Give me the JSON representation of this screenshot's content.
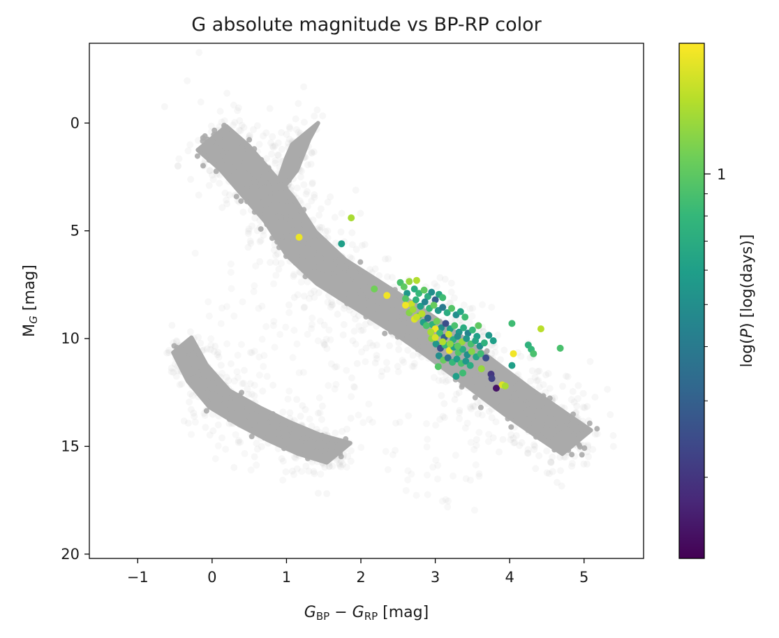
{
  "chart_data": {
    "type": "scatter",
    "title": "G absolute magnitude vs BP-RP color",
    "xlabel": {
      "base1": "G",
      "sub1": "BP",
      "minus": " − ",
      "base2": "G",
      "sub2": "RP",
      "unit": " [mag]"
    },
    "ylabel": {
      "base": "M",
      "sub": "G",
      "unit": " [mag]"
    },
    "xlim": [
      -1.65,
      5.8
    ],
    "ylim": [
      20.2,
      -3.7
    ],
    "y_inverted": true,
    "x_ticks": [
      -1,
      0,
      1,
      2,
      3,
      4,
      5
    ],
    "x_tick_labels": [
      "−1",
      "0",
      "1",
      "2",
      "3",
      "4",
      "5"
    ],
    "y_ticks": [
      0,
      5,
      10,
      15,
      20
    ],
    "y_tick_labels": [
      "0",
      "5",
      "10",
      "15",
      "20"
    ],
    "grid": false,
    "colorbar": {
      "label": "log(P) [log(days)]",
      "label_parts": {
        "pre": "log(",
        "italic": "P",
        "post": ") [log(days)]"
      },
      "scale": "log",
      "range": [
        0.13,
        2.0
      ],
      "ticks": [
        1
      ],
      "tick_labels": [
        "1"
      ],
      "minor_ticks": [
        0.2,
        0.3,
        0.4,
        0.5,
        0.6,
        0.7,
        0.8,
        0.9
      ],
      "colormap": "viridis",
      "colormap_stops": [
        "#440154",
        "#482878",
        "#3e4989",
        "#31688e",
        "#26828e",
        "#1f9e89",
        "#35b779",
        "#6ece58",
        "#b5de2b",
        "#fde725"
      ]
    },
    "background_population": {
      "description_color": "#aaaaaa",
      "core_color": "#aaaaaa",
      "halo_color": "#bdbdbd",
      "main_sequence_ridge": [
        [
          0.0,
          0.7
        ],
        [
          0.3,
          1.6
        ],
        [
          0.6,
          2.8
        ],
        [
          0.9,
          4.0
        ],
        [
          1.2,
          5.6
        ],
        [
          1.6,
          6.9
        ],
        [
          2.1,
          8.0
        ],
        [
          2.6,
          9.1
        ],
        [
          3.1,
          10.3
        ],
        [
          3.6,
          11.6
        ],
        [
          4.1,
          12.9
        ],
        [
          4.6,
          14.1
        ],
        [
          4.9,
          14.8
        ]
      ],
      "giant_branch_ridge": [
        [
          0.8,
          3.5
        ],
        [
          1.0,
          2.6
        ],
        [
          1.15,
          1.2
        ],
        [
          1.25,
          0.5
        ]
      ],
      "white_dwarf_ridge": [
        [
          -0.4,
          10.3
        ],
        [
          -0.2,
          11.6
        ],
        [
          0.1,
          12.8
        ],
        [
          0.5,
          13.6
        ],
        [
          0.9,
          14.3
        ],
        [
          1.3,
          14.9
        ],
        [
          1.7,
          15.3
        ]
      ]
    },
    "series": [
      {
        "points": [
          [
            1.17,
            5.3,
            1.85
          ],
          [
            1.87,
            4.4,
            1.4
          ],
          [
            1.74,
            5.6,
            0.6
          ],
          [
            2.18,
            7.7,
            1.1
          ],
          [
            2.35,
            8.0,
            1.9
          ],
          [
            2.53,
            7.4,
            0.9
          ],
          [
            2.58,
            7.6,
            1.0
          ],
          [
            2.62,
            7.9,
            0.55
          ],
          [
            2.65,
            7.35,
            1.3
          ],
          [
            2.72,
            7.7,
            0.7
          ],
          [
            2.75,
            7.3,
            1.45
          ],
          [
            2.78,
            7.9,
            0.8
          ],
          [
            2.85,
            7.75,
            1.0
          ],
          [
            2.9,
            8.05,
            0.7
          ],
          [
            2.95,
            7.85,
            0.5
          ],
          [
            3.0,
            8.2,
            0.3
          ],
          [
            3.05,
            7.95,
            0.65
          ],
          [
            3.1,
            8.1,
            0.85
          ],
          [
            2.6,
            8.15,
            0.95
          ],
          [
            2.68,
            8.4,
            1.6
          ],
          [
            2.74,
            8.2,
            0.75
          ],
          [
            2.8,
            8.5,
            0.6
          ],
          [
            2.86,
            8.3,
            0.45
          ],
          [
            2.92,
            8.6,
            0.8
          ],
          [
            2.98,
            8.45,
            1.05
          ],
          [
            3.04,
            8.7,
            0.55
          ],
          [
            3.1,
            8.55,
            0.4
          ],
          [
            3.16,
            8.8,
            0.7
          ],
          [
            3.22,
            8.6,
            0.95
          ],
          [
            3.28,
            8.9,
            0.5
          ],
          [
            3.34,
            8.75,
            0.65
          ],
          [
            3.4,
            9.0,
            0.85
          ],
          [
            2.65,
            8.8,
            1.2
          ],
          [
            2.72,
            9.1,
            1.75
          ],
          [
            2.78,
            8.95,
            1.0
          ],
          [
            2.84,
            9.25,
            0.6
          ],
          [
            2.9,
            9.05,
            0.35
          ],
          [
            2.96,
            9.35,
            0.75
          ],
          [
            3.02,
            9.2,
            1.1
          ],
          [
            3.08,
            9.5,
            0.5
          ],
          [
            3.14,
            9.3,
            0.25
          ],
          [
            3.2,
            9.55,
            0.6
          ],
          [
            3.26,
            9.4,
            0.9
          ],
          [
            3.32,
            9.7,
            0.55
          ],
          [
            3.38,
            9.5,
            0.7
          ],
          [
            3.44,
            9.75,
            0.45
          ],
          [
            3.5,
            9.6,
            0.8
          ],
          [
            3.56,
            9.9,
            0.6
          ],
          [
            3.0,
            9.55,
            1.9
          ],
          [
            3.06,
            9.75,
            0.85
          ],
          [
            3.12,
            9.95,
            0.3
          ],
          [
            3.18,
            9.8,
            1.6
          ],
          [
            3.24,
            10.05,
            0.7
          ],
          [
            3.3,
            9.9,
            0.5
          ],
          [
            3.36,
            10.15,
            1.3
          ],
          [
            3.42,
            10.0,
            0.55
          ],
          [
            3.48,
            10.25,
            0.9
          ],
          [
            3.54,
            10.1,
            0.65
          ],
          [
            3.6,
            10.35,
            0.5
          ],
          [
            3.66,
            10.2,
            0.75
          ],
          [
            2.95,
            10.0,
            1.25
          ],
          [
            3.01,
            10.25,
            0.55
          ],
          [
            3.07,
            10.45,
            0.25
          ],
          [
            3.13,
            10.3,
            0.8
          ],
          [
            3.19,
            10.55,
            1.85
          ],
          [
            3.25,
            10.4,
            0.6
          ],
          [
            3.31,
            10.65,
            0.95
          ],
          [
            3.37,
            10.5,
            0.7
          ],
          [
            3.43,
            10.75,
            0.5
          ],
          [
            3.49,
            10.6,
            1.2
          ],
          [
            3.55,
            10.85,
            0.65
          ],
          [
            3.61,
            10.7,
            0.85
          ],
          [
            3.05,
            10.8,
            0.5
          ],
          [
            3.11,
            11.0,
            1.05
          ],
          [
            3.17,
            10.9,
            0.35
          ],
          [
            3.23,
            11.1,
            0.8
          ],
          [
            3.29,
            10.95,
            0.6
          ],
          [
            3.35,
            11.15,
            0.9
          ],
          [
            3.41,
            11.05,
            0.55
          ],
          [
            3.47,
            11.25,
            0.7
          ],
          [
            3.04,
            11.3,
            0.95
          ],
          [
            3.28,
            11.75,
            0.6
          ],
          [
            3.37,
            11.6,
            0.85
          ],
          [
            3.62,
            11.4,
            1.3
          ],
          [
            3.75,
            11.65,
            0.2
          ],
          [
            3.76,
            11.85,
            0.22
          ],
          [
            3.82,
            12.3,
            0.15
          ],
          [
            3.9,
            12.15,
            1.75
          ],
          [
            3.94,
            12.2,
            1.4
          ],
          [
            3.68,
            10.9,
            0.25
          ],
          [
            3.78,
            10.1,
            0.6
          ],
          [
            3.72,
            9.85,
            0.55
          ],
          [
            3.58,
            9.4,
            1.0
          ],
          [
            4.03,
            9.3,
            0.85
          ],
          [
            4.05,
            10.7,
            1.9
          ],
          [
            4.03,
            11.25,
            0.6
          ],
          [
            4.25,
            10.3,
            0.75
          ],
          [
            4.29,
            10.5,
            0.8
          ],
          [
            4.32,
            10.7,
            0.9
          ],
          [
            4.42,
            9.55,
            1.5
          ],
          [
            4.68,
            10.45,
            0.9
          ],
          [
            2.6,
            8.45,
            1.9
          ],
          [
            2.7,
            8.65,
            1.35
          ],
          [
            2.75,
            9.0,
            1.6
          ],
          [
            2.82,
            8.85,
            1.5
          ],
          [
            2.88,
            9.4,
            0.9
          ],
          [
            2.94,
            9.7,
            1.4
          ],
          [
            3.0,
            9.95,
            1.7
          ],
          [
            3.1,
            10.15,
            1.45
          ],
          [
            3.2,
            10.25,
            1.25
          ],
          [
            3.3,
            10.35,
            1.0
          ]
        ]
      }
    ]
  }
}
